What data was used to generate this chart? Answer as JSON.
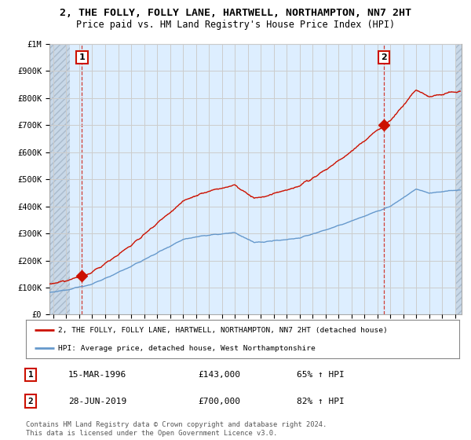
{
  "title": "2, THE FOLLY, FOLLY LANE, HARTWELL, NORTHAMPTON, NN7 2HT",
  "subtitle": "Price paid vs. HM Land Registry's House Price Index (HPI)",
  "ylim": [
    0,
    1000000
  ],
  "yticks": [
    0,
    100000,
    200000,
    300000,
    400000,
    500000,
    600000,
    700000,
    800000,
    900000,
    1000000
  ],
  "ytick_labels": [
    "£0",
    "£100K",
    "£200K",
    "£300K",
    "£400K",
    "£500K",
    "£600K",
    "£700K",
    "£800K",
    "£900K",
    "£1M"
  ],
  "xlim_start": 1993.7,
  "xlim_end": 2025.5,
  "background_color": "#ddeeff",
  "fig_bg_color": "#ffffff",
  "grid_color": "#cccccc",
  "hpi_line_color": "#6699cc",
  "price_line_color": "#cc1100",
  "sale1_x": 1996.21,
  "sale1_y": 143000,
  "sale1_label": "1",
  "sale1_date": "15-MAR-1996",
  "sale1_price": "£143,000",
  "sale1_hpi": "65% ↑ HPI",
  "sale2_x": 2019.49,
  "sale2_y": 700000,
  "sale2_label": "2",
  "sale2_date": "28-JUN-2019",
  "sale2_price": "£700,000",
  "sale2_hpi": "82% ↑ HPI",
  "legend_line1": "2, THE FOLLY, FOLLY LANE, HARTWELL, NORTHAMPTON, NN7 2HT (detached house)",
  "legend_line2": "HPI: Average price, detached house, West Northamptonshire",
  "footer": "Contains HM Land Registry data © Crown copyright and database right 2024.\nThis data is licensed under the Open Government Licence v3.0.",
  "title_fontsize": 9.5,
  "subtitle_fontsize": 8.5
}
